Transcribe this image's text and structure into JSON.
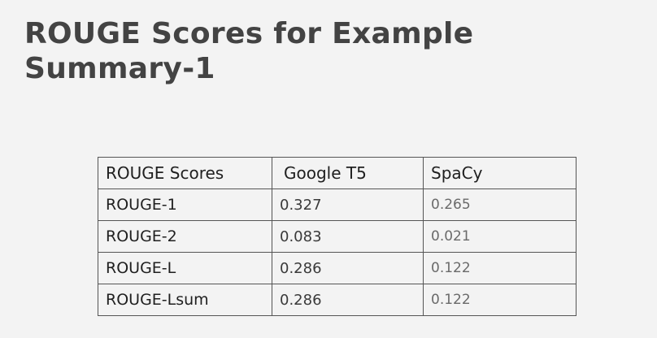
{
  "slide": {
    "title_line1": "ROUGE Scores for Example",
    "title_line2": "Summary-1"
  },
  "table": {
    "headers": [
      "ROUGE Scores",
      "Google T5",
      "SpaCy"
    ],
    "rows": [
      {
        "metric": "ROUGE-1",
        "google_t5": "0.327",
        "spacy": "0.265"
      },
      {
        "metric": "ROUGE-2",
        "google_t5": "0.083",
        "spacy": "0.021"
      },
      {
        "metric": "ROUGE-L",
        "google_t5": "0.286",
        "spacy": "0.122"
      },
      {
        "metric": "ROUGE-Lsum",
        "google_t5": "0.286",
        "spacy": "0.122"
      }
    ]
  },
  "colors": {
    "background": "#f3f3f3",
    "title": "#434343",
    "border": "#555555"
  }
}
